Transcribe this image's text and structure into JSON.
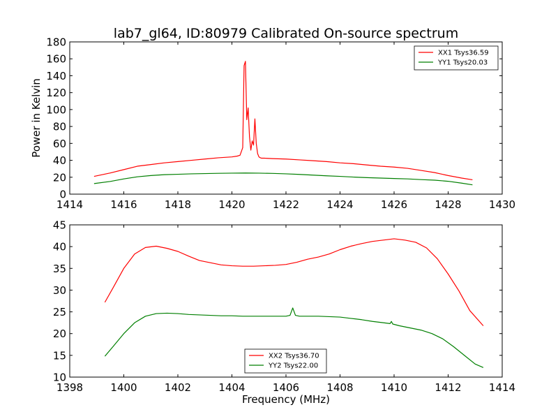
{
  "figure": {
    "title": "lab7_gl64, ID:80979 Calibrated On-source spectrum"
  },
  "chart_data": [
    {
      "type": "line",
      "title": "lab7_gl64, ID:80979 Calibrated On-source spectrum",
      "xlabel": "",
      "ylabel": "Power in Kelvin",
      "xlim": [
        1414,
        1430
      ],
      "ylim": [
        0,
        180
      ],
      "xticks": [
        1414,
        1416,
        1418,
        1420,
        1422,
        1424,
        1426,
        1428,
        1430
      ],
      "yticks": [
        0,
        20,
        40,
        60,
        80,
        100,
        120,
        140,
        160,
        180
      ],
      "grid": false,
      "legend_position": "top-right",
      "series": [
        {
          "name": "XX1 Tsys36.59",
          "color": "#ff0000",
          "x": [
            1414.9,
            1415.5,
            1416.0,
            1416.5,
            1417.0,
            1417.5,
            1418.0,
            1418.5,
            1419.0,
            1419.5,
            1420.0,
            1420.2,
            1420.3,
            1420.4,
            1420.45,
            1420.5,
            1420.55,
            1420.6,
            1420.65,
            1420.7,
            1420.75,
            1420.8,
            1420.85,
            1420.9,
            1420.95,
            1421.0,
            1421.05,
            1421.1,
            1421.2,
            1421.5,
            1422.0,
            1422.5,
            1423.0,
            1423.5,
            1424.0,
            1424.5,
            1425.0,
            1425.5,
            1426.0,
            1426.5,
            1427.0,
            1427.5,
            1428.0,
            1428.5,
            1428.9
          ],
          "y": [
            21,
            25,
            29,
            33,
            35,
            37,
            38.5,
            40,
            41.5,
            43,
            44,
            45,
            46,
            55,
            152,
            157,
            88,
            102,
            68,
            52,
            63,
            58,
            89,
            60,
            48,
            44,
            43,
            42.5,
            42.5,
            42,
            41.5,
            40.5,
            39.5,
            38.5,
            37,
            36,
            34.5,
            33,
            32,
            30.5,
            28,
            25.5,
            22,
            19,
            17
          ]
        },
        {
          "name": "YY1 Tsys20.03",
          "color": "#007f00",
          "x": [
            1414.9,
            1415.5,
            1416.0,
            1416.5,
            1417.0,
            1417.5,
            1418.0,
            1418.5,
            1419.0,
            1419.5,
            1420.0,
            1420.5,
            1421.0,
            1421.5,
            1422.0,
            1422.5,
            1423.0,
            1423.5,
            1424.0,
            1424.5,
            1425.0,
            1425.5,
            1426.0,
            1426.5,
            1427.0,
            1427.5,
            1428.0,
            1428.5,
            1428.9
          ],
          "y": [
            12.5,
            15,
            18,
            20.5,
            22,
            23,
            23.5,
            24,
            24.3,
            24.6,
            24.8,
            25,
            24.8,
            24.5,
            24,
            23.3,
            22.5,
            21.7,
            21,
            20.2,
            19.5,
            19,
            18.5,
            18,
            17.2,
            16.5,
            15.2,
            13,
            11
          ]
        }
      ]
    },
    {
      "type": "line",
      "title": "",
      "xlabel": "Frequency (MHz)",
      "ylabel": "",
      "xlim": [
        1398,
        1414
      ],
      "ylim": [
        10,
        45
      ],
      "xticks": [
        1398,
        1400,
        1402,
        1404,
        1406,
        1408,
        1410,
        1412,
        1414
      ],
      "yticks": [
        10,
        15,
        20,
        25,
        30,
        35,
        40,
        45
      ],
      "grid": false,
      "legend_position": "bottom-center",
      "series": [
        {
          "name": "XX2 Tsys36.70",
          "color": "#ff0000",
          "x": [
            1399.3,
            1399.6,
            1400.0,
            1400.4,
            1400.8,
            1401.2,
            1401.6,
            1402.0,
            1402.4,
            1402.8,
            1403.2,
            1403.6,
            1404.0,
            1404.4,
            1404.8,
            1405.2,
            1405.6,
            1406.0,
            1406.4,
            1406.8,
            1407.2,
            1407.6,
            1408.0,
            1408.4,
            1408.8,
            1409.2,
            1409.6,
            1410.0,
            1410.4,
            1410.8,
            1411.2,
            1411.6,
            1412.0,
            1412.4,
            1412.8,
            1413.3
          ],
          "y": [
            27.2,
            30.5,
            35,
            38.3,
            39.8,
            40.1,
            39.6,
            38.9,
            37.8,
            36.8,
            36.3,
            35.8,
            35.6,
            35.5,
            35.5,
            35.6,
            35.7,
            35.9,
            36.4,
            37.1,
            37.6,
            38.3,
            39.3,
            40.1,
            40.7,
            41.2,
            41.5,
            41.8,
            41.5,
            41,
            39.7,
            37.2,
            33.7,
            29.8,
            25.3,
            21.8
          ]
        },
        {
          "name": "YY2 Tsys22.00",
          "color": "#007f00",
          "x": [
            1399.3,
            1399.6,
            1400.0,
            1400.4,
            1400.8,
            1401.2,
            1401.6,
            1402.0,
            1402.4,
            1402.8,
            1403.2,
            1403.6,
            1404.0,
            1404.4,
            1404.8,
            1405.2,
            1405.6,
            1406.0,
            1406.15,
            1406.25,
            1406.35,
            1406.5,
            1406.8,
            1407.2,
            1407.6,
            1408.0,
            1408.4,
            1408.8,
            1409.2,
            1409.6,
            1409.85,
            1409.9,
            1409.95,
            1410.2,
            1410.6,
            1411.0,
            1411.4,
            1411.8,
            1412.2,
            1412.6,
            1413.0,
            1413.3
          ],
          "y": [
            14.8,
            17,
            20,
            22.5,
            24,
            24.6,
            24.7,
            24.6,
            24.4,
            24.3,
            24.2,
            24.1,
            24.1,
            24,
            24,
            24,
            24,
            24,
            24.2,
            25.9,
            24.2,
            24,
            24,
            24,
            23.9,
            23.8,
            23.5,
            23.2,
            22.8,
            22.5,
            22.3,
            22.8,
            22.2,
            21.8,
            21.3,
            20.8,
            20,
            18.8,
            17,
            15,
            13,
            12.2
          ]
        }
      ]
    }
  ]
}
